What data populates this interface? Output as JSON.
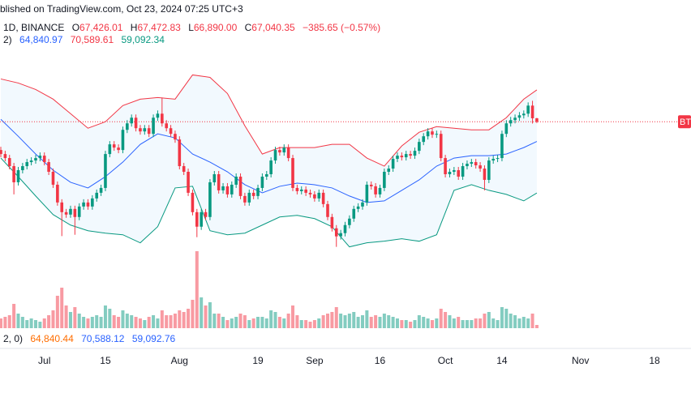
{
  "header": {
    "published": "blished on TradingView.com, Oct 23, 2024 07:25 UTC+3",
    "symbol": "1D, BINANCE",
    "ohlc": [
      {
        "key": "O",
        "value": "67,426.01"
      },
      {
        "key": "H",
        "value": "67,472.83"
      },
      {
        "key": "L",
        "value": "66,890.00"
      },
      {
        "key": "C",
        "value": "67,040.35"
      }
    ],
    "change": "−385.65 (−0.57%)"
  },
  "indicator_legend": {
    "label": "2)",
    "values": [
      "64,840.97",
      "70,589.61",
      "59,092.34"
    ]
  },
  "bottom_legend": {
    "label": "2, 0)",
    "values": [
      "64,840.44",
      "70,588.12",
      "59,092.76"
    ]
  },
  "chart_data": {
    "type": "candlestick",
    "price_tag": "BT",
    "up_color": "#089981",
    "down_color": "#f23645",
    "xlim": [
      "2024-06-21",
      "2024-11-26"
    ],
    "ylim": [
      50800,
      77000
    ],
    "volume_lim": [
      0,
      100
    ],
    "xticks": [
      {
        "value": "2024-07-01",
        "label": "Jul"
      },
      {
        "value": "2024-07-15",
        "label": "15"
      },
      {
        "value": "2024-08-01",
        "label": "Aug"
      },
      {
        "value": "2024-08-19",
        "label": "19"
      },
      {
        "value": "2024-09-01",
        "label": "Sep"
      },
      {
        "value": "2024-09-16",
        "label": "16"
      },
      {
        "value": "2024-10-01",
        "label": "Oct"
      },
      {
        "value": "2024-10-14",
        "label": "14"
      },
      {
        "value": "2024-11-01",
        "label": "Nov"
      },
      {
        "value": "2024-11-18",
        "label": "18"
      }
    ],
    "x": [
      "2024-06-21",
      "2024-06-22",
      "2024-06-23",
      "2024-06-24",
      "2024-06-25",
      "2024-06-26",
      "2024-06-27",
      "2024-06-28",
      "2024-06-29",
      "2024-06-30",
      "2024-07-01",
      "2024-07-02",
      "2024-07-03",
      "2024-07-04",
      "2024-07-05",
      "2024-07-06",
      "2024-07-07",
      "2024-07-08",
      "2024-07-09",
      "2024-07-10",
      "2024-07-11",
      "2024-07-12",
      "2024-07-13",
      "2024-07-14",
      "2024-07-15",
      "2024-07-16",
      "2024-07-17",
      "2024-07-18",
      "2024-07-19",
      "2024-07-20",
      "2024-07-21",
      "2024-07-22",
      "2024-07-23",
      "2024-07-24",
      "2024-07-25",
      "2024-07-26",
      "2024-07-27",
      "2024-07-28",
      "2024-07-29",
      "2024-07-30",
      "2024-07-31",
      "2024-08-01",
      "2024-08-02",
      "2024-08-03",
      "2024-08-04",
      "2024-08-05",
      "2024-08-06",
      "2024-08-07",
      "2024-08-08",
      "2024-08-09",
      "2024-08-10",
      "2024-08-11",
      "2024-08-12",
      "2024-08-13",
      "2024-08-14",
      "2024-08-15",
      "2024-08-16",
      "2024-08-17",
      "2024-08-18",
      "2024-08-19",
      "2024-08-20",
      "2024-08-21",
      "2024-08-22",
      "2024-08-23",
      "2024-08-24",
      "2024-08-25",
      "2024-08-26",
      "2024-08-27",
      "2024-08-28",
      "2024-08-29",
      "2024-08-30",
      "2024-08-31",
      "2024-09-01",
      "2024-09-02",
      "2024-09-03",
      "2024-09-04",
      "2024-09-05",
      "2024-09-06",
      "2024-09-07",
      "2024-09-08",
      "2024-09-09",
      "2024-09-10",
      "2024-09-11",
      "2024-09-12",
      "2024-09-13",
      "2024-09-14",
      "2024-09-15",
      "2024-09-16",
      "2024-09-17",
      "2024-09-18",
      "2024-09-19",
      "2024-09-20",
      "2024-09-21",
      "2024-09-22",
      "2024-09-23",
      "2024-09-24",
      "2024-09-25",
      "2024-09-26",
      "2024-09-27",
      "2024-09-28",
      "2024-09-29",
      "2024-09-30",
      "2024-10-01",
      "2024-10-02",
      "2024-10-03",
      "2024-10-04",
      "2024-10-05",
      "2024-10-06",
      "2024-10-07",
      "2024-10-08",
      "2024-10-09",
      "2024-10-10",
      "2024-10-11",
      "2024-10-12",
      "2024-10-13",
      "2024-10-14",
      "2024-10-15",
      "2024-10-16",
      "2024-10-17",
      "2024-10-18",
      "2024-10-19",
      "2024-10-20",
      "2024-10-21",
      "2024-10-22"
    ],
    "open": [
      63890,
      63440,
      62990,
      62090,
      60290,
      61640,
      62090,
      62540,
      62720,
      62990,
      63260,
      62540,
      61460,
      60020,
      58040,
      56960,
      56690,
      57320,
      56420,
      57590,
      58040,
      57590,
      58490,
      59120,
      59660,
      63440,
      64520,
      64160,
      63890,
      66140,
      66860,
      67490,
      66320,
      65960,
      66320,
      65690,
      67490,
      67940,
      66860,
      66320,
      65690,
      65060,
      62090,
      61460,
      59120,
      56960,
      55340,
      56960,
      56420,
      60290,
      61190,
      59390,
      59840,
      58940,
      60020,
      60920,
      58760,
      58040,
      59120,
      58760,
      59660,
      60920,
      61190,
      62720,
      63890,
      63620,
      64160,
      62990,
      59660,
      59300,
      59480,
      59120,
      58940,
      58490,
      59120,
      57860,
      56420,
      55160,
      54260,
      54620,
      55520,
      56240,
      57320,
      57590,
      58040,
      60020,
      59840,
      58940,
      59660,
      61460,
      61820,
      62900,
      63260,
      63080,
      63440,
      63260,
      63800,
      64790,
      65420,
      65960,
      65600,
      65690,
      62990,
      61190,
      61460,
      61640,
      60920,
      62090,
      62360,
      62540,
      62180,
      61820,
      60560,
      62720,
      62900,
      62990,
      65690,
      66860,
      67220,
      67490,
      67760,
      67940,
      68840,
      67426.01
    ],
    "high": [
      64250,
      63800,
      63350,
      62450,
      62000,
      62450,
      62900,
      63080,
      63350,
      63620,
      63620,
      62900,
      61820,
      60380,
      58400,
      57320,
      57680,
      57680,
      57950,
      58400,
      58400,
      58850,
      59480,
      60020,
      63800,
      64880,
      64880,
      64520,
      66500,
      67220,
      67850,
      67850,
      66680,
      66680,
      66680,
      67850,
      68300,
      69740,
      67220,
      66680,
      66050,
      65420,
      62450,
      61820,
      59480,
      57320,
      57320,
      57320,
      60650,
      61550,
      61550,
      60200,
      60200,
      60380,
      61280,
      61280,
      59120,
      59480,
      59480,
      60020,
      61280,
      61550,
      63080,
      64250,
      64250,
      64520,
      64520,
      63350,
      60020,
      59840,
      59840,
      59480,
      59300,
      59480,
      59480,
      58220,
      56780,
      55520,
      54980,
      55880,
      56600,
      57680,
      57950,
      58400,
      60380,
      60380,
      60200,
      60020,
      61820,
      62180,
      63260,
      63620,
      63620,
      63800,
      63800,
      64160,
      65150,
      65780,
      66320,
      66320,
      66050,
      66050,
      63350,
      61820,
      62000,
      62000,
      62450,
      62720,
      62900,
      62900,
      62540,
      62180,
      63080,
      63260,
      63350,
      66050,
      67220,
      67580,
      67850,
      68120,
      68300,
      69200,
      69380,
      67472.83
    ],
    "low": [
      63080,
      62630,
      61730,
      58940,
      59930,
      61280,
      61730,
      62180,
      62360,
      62630,
      62180,
      61100,
      59660,
      57680,
      54290,
      56330,
      56330,
      54440,
      56060,
      57230,
      57230,
      57230,
      58130,
      58760,
      59300,
      63080,
      63800,
      63530,
      63530,
      65780,
      66500,
      65960,
      65600,
      65600,
      65330,
      65330,
      67130,
      66500,
      65960,
      65330,
      64700,
      61730,
      61100,
      58760,
      56600,
      54170,
      54980,
      56060,
      56060,
      59930,
      59030,
      59030,
      58580,
      58580,
      59660,
      58400,
      57680,
      57680,
      58400,
      58400,
      59300,
      60560,
      60830,
      62360,
      63260,
      63260,
      62630,
      59300,
      58940,
      58940,
      58760,
      58580,
      58130,
      58130,
      57500,
      56060,
      54800,
      53090,
      53900,
      54260,
      55160,
      55880,
      56960,
      57230,
      57680,
      59480,
      58580,
      58580,
      59300,
      61100,
      61460,
      62540,
      62720,
      62720,
      62900,
      62900,
      63440,
      64430,
      65060,
      65240,
      65240,
      62630,
      60830,
      60830,
      61100,
      60560,
      60560,
      61730,
      62000,
      61820,
      61460,
      59390,
      60200,
      62360,
      62540,
      62630,
      65330,
      66500,
      66860,
      67130,
      67400,
      67580,
      66840,
      66890
    ],
    "close": [
      63440,
      62990,
      62090,
      60290,
      61640,
      62090,
      62540,
      62720,
      62990,
      63260,
      62540,
      61460,
      60020,
      58040,
      56960,
      56690,
      57320,
      56420,
      57590,
      58040,
      57590,
      58490,
      59120,
      59660,
      63440,
      64520,
      64160,
      63890,
      66140,
      66860,
      67490,
      66320,
      65960,
      66320,
      65690,
      67490,
      67940,
      66860,
      66320,
      65690,
      65060,
      62090,
      61460,
      59120,
      56960,
      55340,
      56960,
      56420,
      60290,
      61190,
      59390,
      59840,
      58940,
      60020,
      60920,
      58760,
      58040,
      59120,
      58760,
      59660,
      60920,
      61190,
      62720,
      63890,
      63620,
      64160,
      62990,
      59660,
      59300,
      59480,
      59120,
      58940,
      58490,
      59120,
      57860,
      56420,
      55160,
      54260,
      54620,
      55520,
      56240,
      57320,
      57590,
      58040,
      60020,
      59840,
      58940,
      59660,
      61460,
      61820,
      62900,
      63260,
      63080,
      63440,
      63260,
      63800,
      64790,
      65420,
      65960,
      65600,
      65690,
      62990,
      61190,
      61460,
      61640,
      60920,
      62090,
      62360,
      62540,
      62180,
      61820,
      60560,
      62720,
      62900,
      62990,
      65690,
      66860,
      67220,
      67490,
      67760,
      67940,
      68840,
      67426.01,
      67040.35
    ],
    "volume": [
      12,
      14,
      16,
      30,
      18,
      14,
      10,
      12,
      10,
      8,
      12,
      16,
      22,
      40,
      50,
      28,
      20,
      26,
      18,
      14,
      12,
      14,
      16,
      14,
      28,
      24,
      16,
      14,
      22,
      18,
      16,
      14,
      12,
      10,
      14,
      16,
      12,
      22,
      16,
      16,
      18,
      22,
      20,
      24,
      35,
      95,
      38,
      28,
      32,
      18,
      18,
      14,
      10,
      12,
      14,
      18,
      16,
      10,
      12,
      14,
      14,
      12,
      22,
      20,
      14,
      12,
      18,
      28,
      16,
      10,
      10,
      8,
      10,
      12,
      16,
      18,
      20,
      26,
      18,
      16,
      18,
      20,
      14,
      16,
      22,
      14,
      16,
      14,
      18,
      16,
      14,
      12,
      10,
      10,
      8,
      10,
      16,
      14,
      12,
      10,
      12,
      24,
      20,
      16,
      12,
      14,
      10,
      10,
      10,
      12,
      12,
      18,
      20,
      12,
      10,
      26,
      24,
      18,
      16,
      12,
      14,
      12,
      18,
      4
    ],
    "band_x": [
      "2024-06-21",
      "2024-06-25",
      "2024-06-29",
      "2024-07-03",
      "2024-07-07",
      "2024-07-11",
      "2024-07-15",
      "2024-07-19",
      "2024-07-23",
      "2024-07-27",
      "2024-07-31",
      "2024-08-04",
      "2024-08-08",
      "2024-08-12",
      "2024-08-16",
      "2024-08-20",
      "2024-08-24",
      "2024-08-28",
      "2024-09-01",
      "2024-09-05",
      "2024-09-09",
      "2024-09-13",
      "2024-09-17",
      "2024-09-21",
      "2024-09-25",
      "2024-09-29",
      "2024-10-03",
      "2024-10-07",
      "2024-10-11",
      "2024-10-15",
      "2024-10-19",
      "2024-10-22"
    ],
    "bands": [
      {
        "color": "#f23645",
        "values": [
          71810,
          71360,
          70640,
          69560,
          67940,
          66320,
          67040,
          68840,
          69560,
          69740,
          69560,
          72260,
          71990,
          70190,
          66590,
          63440,
          64160,
          64160,
          64160,
          64520,
          64520,
          62990,
          62090,
          64340,
          65870,
          66500,
          66320,
          66140,
          66140,
          67490,
          69560,
          70589.61
        ]
      },
      {
        "color": "#2962ff",
        "values": [
          67310,
          65420,
          63440,
          61640,
          60290,
          59660,
          60920,
          62540,
          64520,
          65690,
          65240,
          63440,
          62540,
          61460,
          60020,
          59120,
          59840,
          60200,
          60020,
          59660,
          58760,
          58040,
          58220,
          59390,
          60560,
          62090,
          62990,
          63260,
          63260,
          63440,
          64160,
          64840.97
        ]
      },
      {
        "color": "#089981",
        "values": [
          62990,
          60920,
          58760,
          56690,
          55520,
          54890,
          54620,
          54440,
          53540,
          55340,
          59660,
          59840,
          54890,
          54440,
          54620,
          55520,
          56420,
          56600,
          56240,
          55340,
          53090,
          53540,
          53720,
          53990,
          53720,
          54440,
          59390,
          60020,
          59390,
          58940,
          58220,
          59092.34
        ]
      }
    ],
    "band_fill": "#2196f3"
  }
}
